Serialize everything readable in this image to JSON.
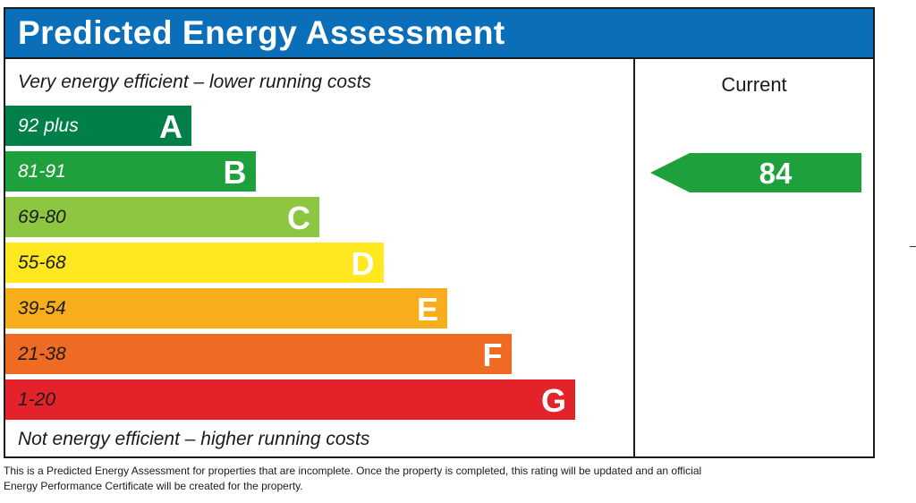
{
  "header": {
    "title": "Predicted Energy Assessment"
  },
  "scale": {
    "top_note": "Very energy efficient – lower running costs",
    "bottom_note": "Not energy efficient – higher running costs"
  },
  "current": {
    "label": "Current"
  },
  "footnote": "This is a Predicted Energy Assessment for properties that are incomplete. Once the property is completed, this rating will be updated and an official Energy Performance Certificate will be created for the property.",
  "chart_data": {
    "type": "bar",
    "title": "Predicted Energy Assessment",
    "bands": [
      {
        "letter": "A",
        "range": "92 plus",
        "min": 92,
        "max": 100,
        "color": "#008048",
        "text_color": "#ffffff"
      },
      {
        "letter": "B",
        "range": "81-91",
        "min": 81,
        "max": 91,
        "color": "#1ea13c",
        "text_color": "#ffffff"
      },
      {
        "letter": "C",
        "range": "69-80",
        "min": 69,
        "max": 80,
        "color": "#8dc641",
        "text_color": "#1a1a1a"
      },
      {
        "letter": "D",
        "range": "55-68",
        "min": 55,
        "max": 68,
        "color": "#ffe820",
        "text_color": "#1a1a1a"
      },
      {
        "letter": "E",
        "range": "39-54",
        "min": 39,
        "max": 54,
        "color": "#f8ad1d",
        "text_color": "#1a1a1a"
      },
      {
        "letter": "F",
        "range": "21-38",
        "min": 21,
        "max": 38,
        "color": "#ef6b24",
        "text_color": "#1a1a1a"
      },
      {
        "letter": "G",
        "range": "1-20",
        "min": 1,
        "max": 20,
        "color": "#e3222a",
        "text_color": "#1a1a1a"
      }
    ],
    "current": {
      "value": 84,
      "band": "B",
      "color": "#1ea13c"
    }
  }
}
